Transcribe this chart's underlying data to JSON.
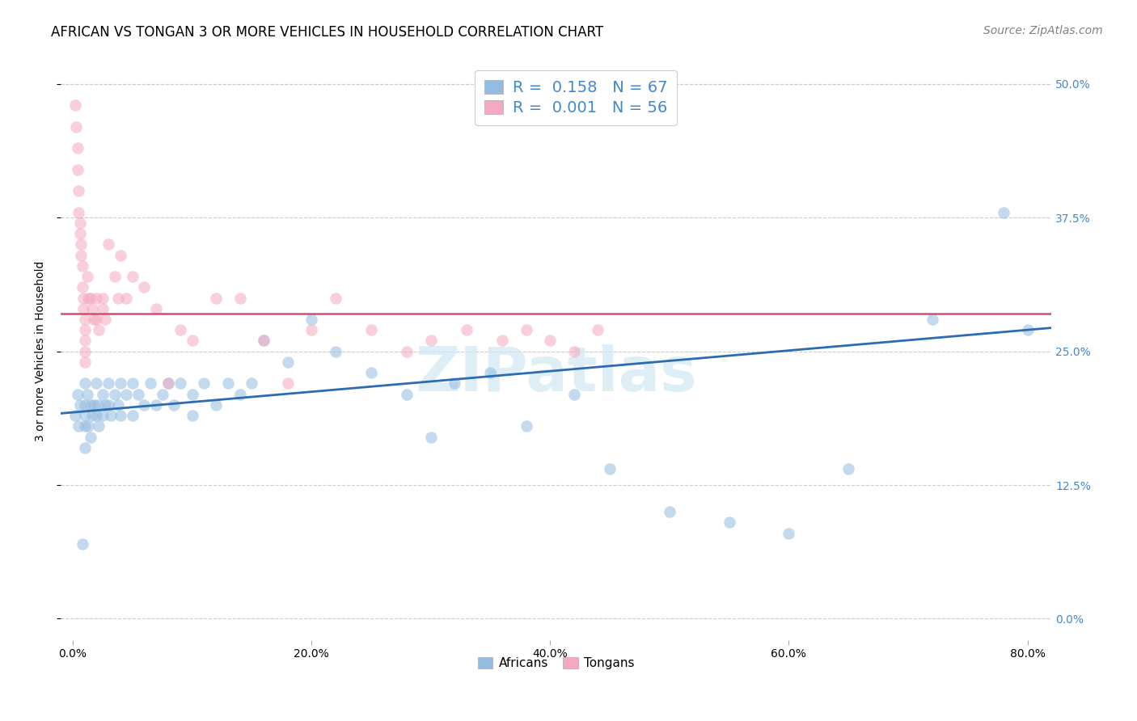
{
  "title": "AFRICAN VS TONGAN 3 OR MORE VEHICLES IN HOUSEHOLD CORRELATION CHART",
  "source": "Source: ZipAtlas.com",
  "ylabel": "3 or more Vehicles in Household",
  "legend_label1": "Africans",
  "legend_label2": "Tongans",
  "xlim": [
    -0.01,
    0.82
  ],
  "ylim": [
    -0.02,
    0.52
  ],
  "xtick_vals": [
    0.0,
    0.2,
    0.4,
    0.6,
    0.8
  ],
  "ytick_vals": [
    0.0,
    0.125,
    0.25,
    0.375,
    0.5
  ],
  "xtick_labels": [
    "0.0%",
    "20.0%",
    "40.0%",
    "60.0%",
    "80.0%"
  ],
  "ytick_labels": [
    "0.0%",
    "12.5%",
    "25.0%",
    "37.5%",
    "50.0%"
  ],
  "blue_line": {
    "x0": -0.01,
    "y0": 0.192,
    "x1": 0.82,
    "y1": 0.272
  },
  "pink_line": {
    "x0": -0.01,
    "y0": 0.285,
    "x1": 0.82,
    "y1": 0.285
  },
  "africans_x": [
    0.002,
    0.004,
    0.005,
    0.006,
    0.008,
    0.01,
    0.01,
    0.01,
    0.01,
    0.01,
    0.012,
    0.013,
    0.015,
    0.015,
    0.016,
    0.018,
    0.02,
    0.02,
    0.021,
    0.022,
    0.025,
    0.025,
    0.027,
    0.03,
    0.03,
    0.032,
    0.035,
    0.038,
    0.04,
    0.04,
    0.045,
    0.05,
    0.05,
    0.055,
    0.06,
    0.065,
    0.07,
    0.075,
    0.08,
    0.085,
    0.09,
    0.1,
    0.1,
    0.11,
    0.12,
    0.13,
    0.14,
    0.15,
    0.16,
    0.18,
    0.2,
    0.22,
    0.25,
    0.28,
    0.3,
    0.32,
    0.35,
    0.38,
    0.42,
    0.45,
    0.5,
    0.55,
    0.6,
    0.65,
    0.72,
    0.78,
    0.8
  ],
  "africans_y": [
    0.19,
    0.21,
    0.18,
    0.2,
    0.07,
    0.22,
    0.2,
    0.19,
    0.18,
    0.16,
    0.21,
    0.18,
    0.2,
    0.17,
    0.19,
    0.2,
    0.22,
    0.19,
    0.2,
    0.18,
    0.21,
    0.19,
    0.2,
    0.22,
    0.2,
    0.19,
    0.21,
    0.2,
    0.22,
    0.19,
    0.21,
    0.22,
    0.19,
    0.21,
    0.2,
    0.22,
    0.2,
    0.21,
    0.22,
    0.2,
    0.22,
    0.21,
    0.19,
    0.22,
    0.2,
    0.22,
    0.21,
    0.22,
    0.26,
    0.24,
    0.28,
    0.25,
    0.23,
    0.21,
    0.17,
    0.22,
    0.23,
    0.18,
    0.21,
    0.14,
    0.1,
    0.09,
    0.08,
    0.14,
    0.28,
    0.38,
    0.27
  ],
  "tongans_x": [
    0.002,
    0.003,
    0.004,
    0.004,
    0.005,
    0.005,
    0.006,
    0.006,
    0.007,
    0.007,
    0.008,
    0.008,
    0.009,
    0.009,
    0.01,
    0.01,
    0.01,
    0.01,
    0.01,
    0.012,
    0.013,
    0.015,
    0.016,
    0.018,
    0.02,
    0.02,
    0.022,
    0.025,
    0.025,
    0.027,
    0.03,
    0.035,
    0.038,
    0.04,
    0.045,
    0.05,
    0.06,
    0.07,
    0.08,
    0.09,
    0.1,
    0.12,
    0.14,
    0.16,
    0.18,
    0.2,
    0.22,
    0.25,
    0.28,
    0.3,
    0.33,
    0.36,
    0.38,
    0.4,
    0.42,
    0.44
  ],
  "tongans_y": [
    0.48,
    0.46,
    0.44,
    0.42,
    0.4,
    0.38,
    0.37,
    0.36,
    0.35,
    0.34,
    0.33,
    0.31,
    0.3,
    0.29,
    0.28,
    0.27,
    0.26,
    0.25,
    0.24,
    0.32,
    0.3,
    0.3,
    0.29,
    0.28,
    0.3,
    0.28,
    0.27,
    0.3,
    0.29,
    0.28,
    0.35,
    0.32,
    0.3,
    0.34,
    0.3,
    0.32,
    0.31,
    0.29,
    0.22,
    0.27,
    0.26,
    0.3,
    0.3,
    0.26,
    0.22,
    0.27,
    0.3,
    0.27,
    0.25,
    0.26,
    0.27,
    0.26,
    0.27,
    0.26,
    0.25,
    0.27
  ],
  "dot_size": 110,
  "dot_alpha": 0.55,
  "blue_color": "#92bce0",
  "pink_color": "#f5a8c0",
  "blue_line_color": "#2b6cb0",
  "pink_line_color": "#d44d6e",
  "grid_color": "#cccccc",
  "background_color": "#ffffff",
  "title_fontsize": 12,
  "axis_fontsize": 10,
  "source_fontsize": 10,
  "right_tick_color": "#4488cc",
  "watermark": "ZIPatlas",
  "watermark_color": "#d0e8f5"
}
